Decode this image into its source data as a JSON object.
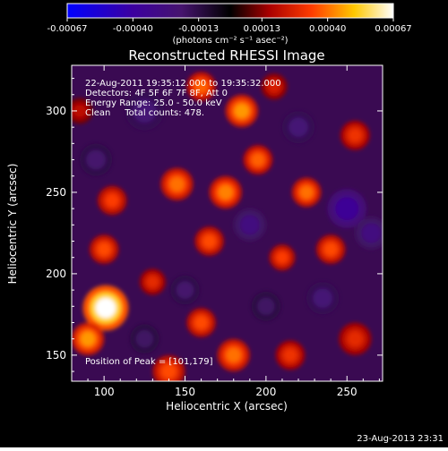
{
  "chart_data": {
    "type": "heatmap",
    "title": "Reconstructed RHESSI Image",
    "xlabel": "Heliocentric X (arcsec)",
    "ylabel": "Heliocentric Y (arcsec)",
    "xlim": [
      80,
      272
    ],
    "ylim": [
      134,
      328
    ],
    "xticks": [
      100,
      150,
      200,
      250
    ],
    "yticks": [
      150,
      200,
      250,
      300
    ],
    "colorbar": {
      "range": [
        -0.00067,
        0.00067
      ],
      "ticks": [
        "-0.00067",
        "-0.00040",
        "-0.00013",
        "0.00013",
        "0.00040",
        "0.00067"
      ],
      "unit_label": "(photons cm⁻² s⁻¹ asec⁻²)"
    },
    "annotations": [
      "22-Aug-2011 19:35:12.000 to 19:35:32.000",
      "Detectors: 4F 5F 6F 7F 8F, Att 0",
      "Energy Range: 25.0 - 50.0 keV",
      "Clean     Total counts: 478."
    ],
    "peak_label": "Position of Peak = [101,179]",
    "peak": [
      101,
      179
    ],
    "blobs": [
      {
        "x": 101,
        "y": 179,
        "v": 0.00067,
        "r": 14
      },
      {
        "x": 90,
        "y": 160,
        "v": 0.00045,
        "r": 10
      },
      {
        "x": 140,
        "y": 140,
        "v": 0.00035,
        "r": 10
      },
      {
        "x": 180,
        "y": 150,
        "v": 0.0004,
        "r": 10
      },
      {
        "x": 215,
        "y": 150,
        "v": 0.0003,
        "r": 9
      },
      {
        "x": 255,
        "y": 160,
        "v": 0.00028,
        "r": 10
      },
      {
        "x": 160,
        "y": 170,
        "v": 0.00035,
        "r": 9
      },
      {
        "x": 145,
        "y": 255,
        "v": 0.0004,
        "r": 10
      },
      {
        "x": 175,
        "y": 250,
        "v": 0.00042,
        "r": 10
      },
      {
        "x": 165,
        "y": 220,
        "v": 0.00035,
        "r": 9
      },
      {
        "x": 195,
        "y": 270,
        "v": 0.00038,
        "r": 9
      },
      {
        "x": 225,
        "y": 250,
        "v": 0.0004,
        "r": 9
      },
      {
        "x": 240,
        "y": 215,
        "v": 0.00035,
        "r": 9
      },
      {
        "x": 210,
        "y": 210,
        "v": 0.00033,
        "r": 8
      },
      {
        "x": 185,
        "y": 300,
        "v": 0.00045,
        "r": 10
      },
      {
        "x": 160,
        "y": 315,
        "v": 0.00038,
        "r": 9
      },
      {
        "x": 105,
        "y": 245,
        "v": 0.00033,
        "r": 9
      },
      {
        "x": 100,
        "y": 215,
        "v": 0.00035,
        "r": 9
      },
      {
        "x": 255,
        "y": 285,
        "v": 0.0003,
        "r": 9
      },
      {
        "x": 130,
        "y": 195,
        "v": 0.00028,
        "r": 8
      },
      {
        "x": 205,
        "y": 315,
        "v": 0.00025,
        "r": 8
      },
      {
        "x": 85,
        "y": 300,
        "v": 0.0002,
        "r": 8
      },
      {
        "x": 250,
        "y": 240,
        "v": -0.0004,
        "r": 12
      },
      {
        "x": 265,
        "y": 225,
        "v": -0.0003,
        "r": 10
      },
      {
        "x": 190,
        "y": 230,
        "v": -0.0003,
        "r": 10
      },
      {
        "x": 125,
        "y": 300,
        "v": -0.00025,
        "r": 12
      },
      {
        "x": 95,
        "y": 270,
        "v": -0.00022,
        "r": 10
      },
      {
        "x": 220,
        "y": 290,
        "v": -0.00025,
        "r": 10
      },
      {
        "x": 150,
        "y": 190,
        "v": -0.00022,
        "r": 9
      },
      {
        "x": 235,
        "y": 185,
        "v": -0.00025,
        "r": 10
      },
      {
        "x": 200,
        "y": 180,
        "v": -0.0002,
        "r": 9
      },
      {
        "x": 125,
        "y": 160,
        "v": -0.0002,
        "r": 9
      }
    ]
  },
  "footer": {
    "timestamp": "23-Aug-2013 23:31"
  }
}
